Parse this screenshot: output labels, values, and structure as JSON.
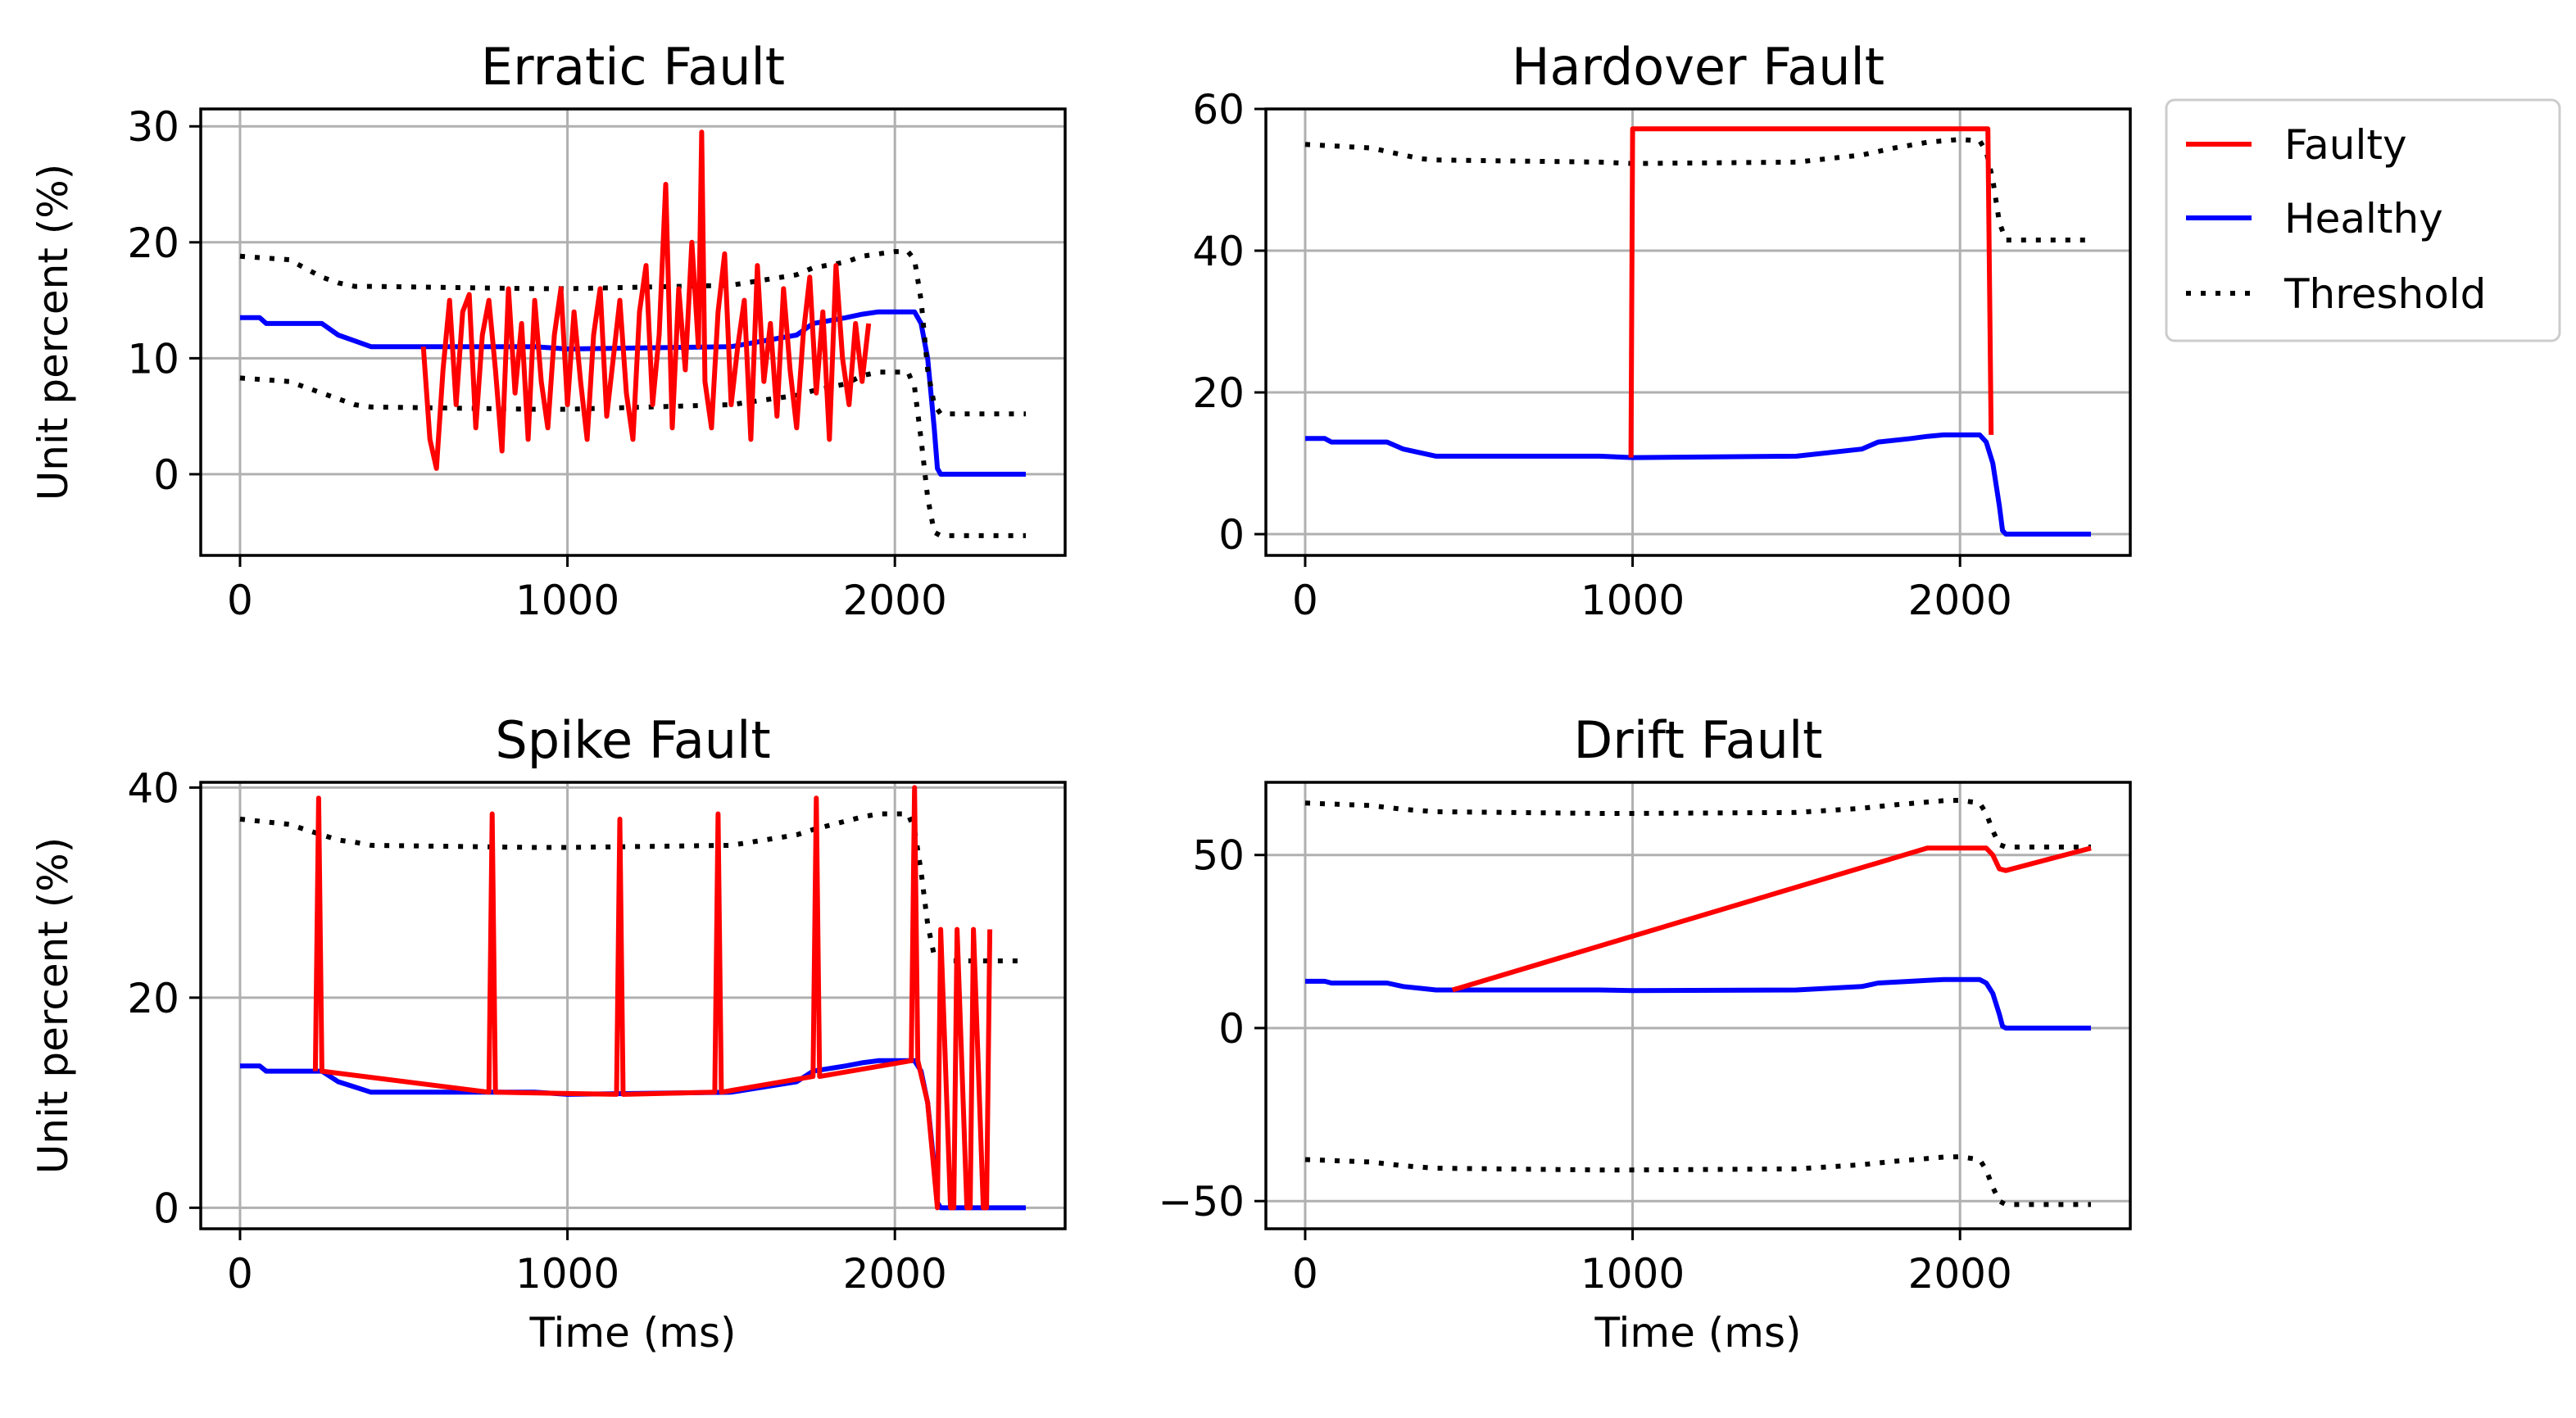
{
  "colors": {
    "faulty": "#ff0000",
    "healthy": "#0000ff",
    "threshold": "#000000",
    "grid": "#b0b0b0"
  },
  "legend": {
    "items": [
      {
        "label": "Faulty",
        "key": "faulty"
      },
      {
        "label": "Healthy",
        "key": "healthy"
      },
      {
        "label": "Threshold",
        "key": "threshold"
      }
    ]
  },
  "chart_data": [
    {
      "type": "line",
      "title": "Erratic Fault",
      "xlabel": "",
      "ylabel": "Unit percent (%)",
      "xlim": [
        -120,
        2520
      ],
      "ylim": [
        -7,
        31.5
      ],
      "xticks": [
        0,
        1000,
        2000
      ],
      "yticks": [
        0,
        10,
        20,
        30
      ],
      "series": [
        {
          "key": "healthy",
          "x": [
            0,
            60,
            80,
            250,
            300,
            350,
            400,
            900,
            1000,
            1500,
            1700,
            1750,
            1850,
            1900,
            1950,
            2000,
            2060,
            2080,
            2100,
            2120,
            2130,
            2140,
            2400
          ],
          "y": [
            13.5,
            13.5,
            13.0,
            13.0,
            12.0,
            11.5,
            11.0,
            11.0,
            10.8,
            11.0,
            12.0,
            13.0,
            13.5,
            13.8,
            14.0,
            14.0,
            14.0,
            13.0,
            10.0,
            4.0,
            0.5,
            0,
            0
          ]
        },
        {
          "key": "threshold",
          "x": [
            0,
            150,
            250,
            300,
            350,
            400,
            900,
            1000,
            1500,
            1700,
            1750,
            1850,
            1900,
            1950,
            2000,
            2040,
            2060,
            2080,
            2100,
            2120,
            2140,
            2400
          ],
          "y": [
            18.8,
            18.5,
            17.0,
            16.5,
            16.2,
            16.2,
            16.0,
            16.0,
            16.3,
            17.2,
            17.8,
            18.3,
            18.8,
            19.0,
            19.2,
            19.2,
            18.5,
            15.0,
            9.0,
            6.0,
            5.2,
            5.2
          ]
        },
        {
          "key": "threshold",
          "x": [
            0,
            150,
            250,
            300,
            350,
            400,
            900,
            1000,
            1500,
            1700,
            1750,
            1850,
            1900,
            1950,
            2000,
            2040,
            2060,
            2080,
            2100,
            2120,
            2140,
            2400
          ],
          "y": [
            8.3,
            8.0,
            7.0,
            6.5,
            6.0,
            5.8,
            5.6,
            5.6,
            6.0,
            6.8,
            7.2,
            7.8,
            8.5,
            8.8,
            8.8,
            8.8,
            7.5,
            3.0,
            -2.0,
            -5.0,
            -5.3,
            -5.3
          ]
        },
        {
          "key": "faulty",
          "x": [
            560,
            580,
            600,
            620,
            640,
            660,
            680,
            700,
            720,
            740,
            760,
            780,
            800,
            820,
            840,
            860,
            880,
            900,
            920,
            940,
            960,
            980,
            1000,
            1020,
            1040,
            1060,
            1080,
            1100,
            1120,
            1140,
            1160,
            1180,
            1200,
            1220,
            1240,
            1260,
            1280,
            1300,
            1320,
            1340,
            1360,
            1380,
            1400,
            1410,
            1420,
            1440,
            1460,
            1480,
            1500,
            1520,
            1540,
            1560,
            1580,
            1600,
            1620,
            1640,
            1660,
            1680,
            1700,
            1720,
            1740,
            1760,
            1780,
            1800,
            1820,
            1840,
            1860,
            1880,
            1900,
            1920
          ],
          "y": [
            11,
            3,
            0.5,
            9,
            15,
            6,
            14,
            15.5,
            4,
            12,
            15,
            9,
            2,
            16,
            7,
            13,
            3,
            15,
            8,
            4,
            12,
            16,
            6,
            14,
            8,
            3,
            12,
            16,
            5,
            10,
            15,
            7,
            3,
            14,
            18,
            6,
            12,
            25,
            4,
            16,
            9,
            20,
            11,
            29.5,
            8,
            4,
            14,
            19,
            6,
            11,
            15,
            3,
            18,
            8,
            13,
            5,
            16,
            9,
            4,
            12,
            17,
            7,
            14,
            3,
            18,
            10,
            6,
            13,
            8,
            13
          ]
        }
      ]
    },
    {
      "type": "line",
      "title": "Hardover Fault",
      "xlabel": "",
      "ylabel": "",
      "xlim": [
        -120,
        2520
      ],
      "ylim": [
        -3,
        60
      ],
      "xticks": [
        0,
        1000,
        2000
      ],
      "yticks": [
        0,
        20,
        40,
        60
      ],
      "series": [
        {
          "key": "healthy",
          "x": [
            0,
            60,
            80,
            250,
            300,
            350,
            400,
            900,
            1000,
            1500,
            1700,
            1750,
            1850,
            1900,
            1950,
            2000,
            2060,
            2080,
            2100,
            2120,
            2130,
            2140,
            2400
          ],
          "y": [
            13.5,
            13.5,
            13.0,
            13.0,
            12.0,
            11.5,
            11.0,
            11.0,
            10.8,
            11.0,
            12.0,
            13.0,
            13.5,
            13.8,
            14.0,
            14.0,
            14.0,
            13.0,
            10.0,
            4.0,
            0.5,
            0,
            0
          ]
        },
        {
          "key": "threshold",
          "x": [
            0,
            200,
            300,
            350,
            400,
            900,
            1000,
            1500,
            1700,
            1800,
            1900,
            1950,
            2000,
            2060,
            2080,
            2100,
            2120,
            2140,
            2400
          ],
          "y": [
            55.0,
            54.5,
            53.5,
            53.0,
            52.8,
            52.5,
            52.3,
            52.5,
            53.5,
            54.5,
            55.3,
            55.5,
            55.7,
            55.5,
            54.0,
            50.0,
            44.0,
            41.5,
            41.5
          ]
        },
        {
          "key": "faulty",
          "x": [
            995,
            1000,
            2085,
            2095
          ],
          "y": [
            10.8,
            57.2,
            57.2,
            14.0
          ]
        }
      ]
    },
    {
      "type": "line",
      "title": "Spike Fault",
      "xlabel": "Time (ms)",
      "ylabel": "Unit percent (%)",
      "xlim": [
        -120,
        2520
      ],
      "ylim": [
        -2,
        40.5
      ],
      "xticks": [
        0,
        1000,
        2000
      ],
      "yticks": [
        0,
        20,
        40
      ],
      "series": [
        {
          "key": "healthy",
          "x": [
            0,
            60,
            80,
            250,
            300,
            350,
            400,
            900,
            1000,
            1500,
            1700,
            1750,
            1850,
            1900,
            1950,
            2000,
            2060,
            2080,
            2100,
            2120,
            2130,
            2140,
            2400
          ],
          "y": [
            13.5,
            13.5,
            13.0,
            13.0,
            12.0,
            11.5,
            11.0,
            11.0,
            10.8,
            11.0,
            12.0,
            13.0,
            13.5,
            13.8,
            14.0,
            14.0,
            14.0,
            13.0,
            10.0,
            4.0,
            0.5,
            0,
            0
          ]
        },
        {
          "key": "threshold",
          "x": [
            0,
            150,
            250,
            300,
            350,
            400,
            900,
            1000,
            1500,
            1700,
            1750,
            1850,
            1900,
            1950,
            2000,
            2040,
            2060,
            2080,
            2100,
            2120,
            2140,
            2400
          ],
          "y": [
            37.0,
            36.5,
            35.5,
            35.0,
            34.8,
            34.5,
            34.3,
            34.3,
            34.5,
            35.5,
            36.0,
            36.8,
            37.2,
            37.5,
            37.5,
            37.5,
            36.0,
            32.0,
            27.0,
            24.0,
            23.5,
            23.5
          ]
        },
        {
          "key": "faulty",
          "x": [
            230,
            240,
            250,
            760,
            770,
            780,
            1150,
            1160,
            1170,
            1450,
            1460,
            1470,
            1750,
            1760,
            1770,
            2050,
            2060,
            2070,
            2100,
            2130,
            2140,
            2170,
            2180,
            2190,
            2220,
            2230,
            2240,
            2270,
            2280,
            2290
          ],
          "y": [
            13.0,
            39,
            13.0,
            11.0,
            37.5,
            11.0,
            10.8,
            37,
            10.8,
            11.0,
            37.5,
            11.0,
            12.5,
            39,
            12.5,
            14.0,
            40,
            14.0,
            10.0,
            0,
            26.5,
            0,
            0,
            26.5,
            0,
            0,
            26.5,
            0,
            0,
            26.5
          ]
        }
      ]
    },
    {
      "type": "line",
      "title": "Drift Fault",
      "xlabel": "Time (ms)",
      "ylabel": "",
      "xlim": [
        -120,
        2520
      ],
      "ylim": [
        -58,
        71
      ],
      "xticks": [
        0,
        1000,
        2000
      ],
      "yticks": [
        -50,
        0,
        50
      ],
      "series": [
        {
          "key": "healthy",
          "x": [
            0,
            60,
            80,
            250,
            300,
            350,
            400,
            900,
            1000,
            1500,
            1700,
            1750,
            1850,
            1900,
            1950,
            2000,
            2060,
            2080,
            2100,
            2120,
            2130,
            2140,
            2400
          ],
          "y": [
            13.5,
            13.5,
            13.0,
            13.0,
            12.0,
            11.5,
            11.0,
            11.0,
            10.8,
            11.0,
            12.0,
            13.0,
            13.5,
            13.8,
            14.0,
            14.0,
            14.0,
            13.0,
            10.0,
            4.0,
            0.5,
            0,
            0
          ]
        },
        {
          "key": "threshold",
          "x": [
            0,
            200,
            300,
            400,
            900,
            1000,
            1500,
            1700,
            1800,
            1900,
            1950,
            2000,
            2060,
            2080,
            2100,
            2120,
            2140,
            2400
          ],
          "y": [
            65.0,
            64.3,
            63.2,
            62.5,
            62.0,
            62.0,
            62.3,
            63.5,
            64.5,
            65.3,
            65.7,
            65.8,
            65.0,
            62.0,
            57.0,
            53.0,
            52.3,
            52.3
          ]
        },
        {
          "key": "threshold",
          "x": [
            0,
            200,
            300,
            400,
            900,
            1000,
            1500,
            1700,
            1800,
            1900,
            1950,
            2000,
            2060,
            2080,
            2100,
            2120,
            2140,
            2400
          ],
          "y": [
            -38.0,
            -38.7,
            -39.8,
            -40.5,
            -41.0,
            -41.0,
            -40.7,
            -39.5,
            -38.5,
            -37.7,
            -37.3,
            -37.2,
            -38.0,
            -41.0,
            -46.0,
            -50.0,
            -51.0,
            -51.0
          ]
        },
        {
          "key": "faulty",
          "x": [
            450,
            1900,
            2080,
            2100,
            2120,
            2140,
            2400
          ],
          "y": [
            11.0,
            52.0,
            52.0,
            50.0,
            46.0,
            45.5,
            52.0
          ]
        }
      ]
    }
  ]
}
